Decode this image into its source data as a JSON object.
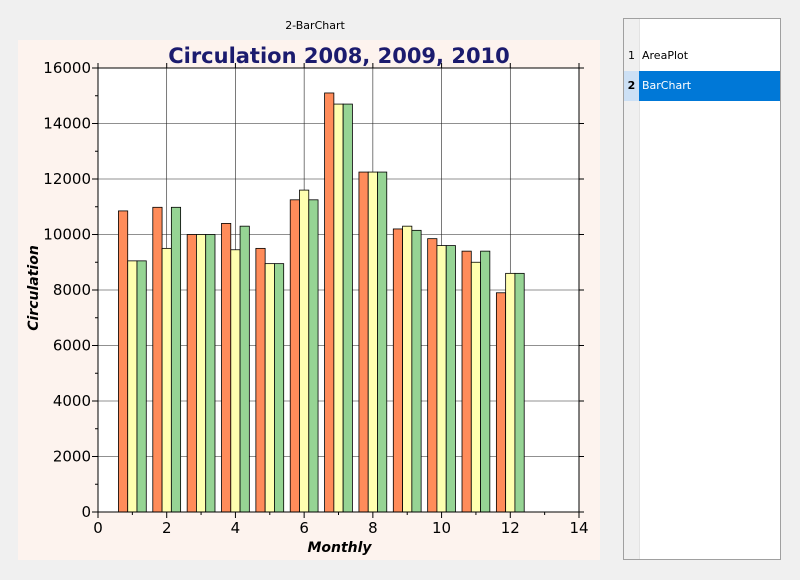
{
  "window": {
    "caption": "2-BarChart"
  },
  "list": {
    "items": [
      {
        "num": "1",
        "label": "AreaPlot",
        "selected": false
      },
      {
        "num": "2",
        "label": "BarChart",
        "selected": true
      }
    ]
  },
  "colors": {
    "series1": "#ff8c5a",
    "series2": "#ffffb0",
    "series3": "#96d494",
    "title": "#1b1b6e",
    "panel": "#fdf3ee",
    "selection": "#0078d7"
  },
  "chart_data": {
    "type": "bar",
    "title": "Circulation 2008, 2009, 2010",
    "xlabel": "Monthly",
    "ylabel": "Circulation",
    "xlim": [
      0,
      14
    ],
    "ylim": [
      0,
      16000
    ],
    "x_ticks": [
      "0",
      "2",
      "4",
      "6",
      "8",
      "10",
      "12",
      "14"
    ],
    "y_ticks": [
      "0",
      "2000",
      "4000",
      "6000",
      "8000",
      "10000",
      "12000",
      "14000",
      "16000"
    ],
    "grid": true,
    "categories": [
      1,
      2,
      3,
      4,
      5,
      6,
      7,
      8,
      9,
      10,
      11,
      12
    ],
    "series": [
      {
        "values": [
          10850,
          10980,
          10000,
          10400,
          9500,
          11250,
          15100,
          12250,
          10200,
          9850,
          9400,
          7900
        ]
      },
      {
        "values": [
          9050,
          9500,
          10000,
          9450,
          8950,
          11600,
          14700,
          12250,
          10300,
          9600,
          9000,
          8600
        ]
      },
      {
        "values": [
          9050,
          10980,
          10000,
          10300,
          8950,
          11250,
          14700,
          12250,
          10150,
          9600,
          9400,
          8600
        ]
      }
    ]
  }
}
